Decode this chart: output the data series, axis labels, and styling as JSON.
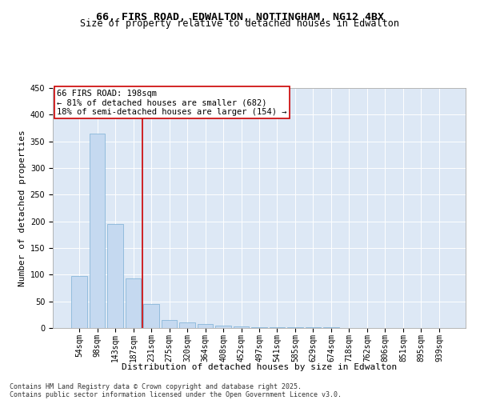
{
  "title_line1": "66, FIRS ROAD, EDWALTON, NOTTINGHAM, NG12 4BX",
  "title_line2": "Size of property relative to detached houses in Edwalton",
  "xlabel": "Distribution of detached houses by size in Edwalton",
  "ylabel": "Number of detached properties",
  "categories": [
    "54sqm",
    "98sqm",
    "143sqm",
    "187sqm",
    "231sqm",
    "275sqm",
    "320sqm",
    "364sqm",
    "408sqm",
    "452sqm",
    "497sqm",
    "541sqm",
    "585sqm",
    "629sqm",
    "674sqm",
    "718sqm",
    "762sqm",
    "806sqm",
    "851sqm",
    "895sqm",
    "939sqm"
  ],
  "values": [
    98,
    365,
    195,
    93,
    45,
    15,
    10,
    7,
    5,
    3,
    1,
    1,
    1,
    1,
    1,
    0,
    0,
    0,
    0,
    0,
    0
  ],
  "bar_color": "#c5d9f0",
  "bar_edge_color": "#7bafd4",
  "vline_x": 3.5,
  "vline_color": "#cc0000",
  "annotation_title": "66 FIRS ROAD: 198sqm",
  "annotation_line1": "← 81% of detached houses are smaller (682)",
  "annotation_line2": "18% of semi-detached houses are larger (154) →",
  "annotation_box_color": "#cc0000",
  "ylim": [
    0,
    450
  ],
  "yticks": [
    0,
    50,
    100,
    150,
    200,
    250,
    300,
    350,
    400,
    450
  ],
  "background_color": "#dde8f5",
  "footer_line1": "Contains HM Land Registry data © Crown copyright and database right 2025.",
  "footer_line2": "Contains public sector information licensed under the Open Government Licence v3.0.",
  "title_fontsize": 9.5,
  "subtitle_fontsize": 8.5,
  "axis_label_fontsize": 8,
  "tick_fontsize": 7,
  "annotation_fontsize": 7.5,
  "footer_fontsize": 6
}
